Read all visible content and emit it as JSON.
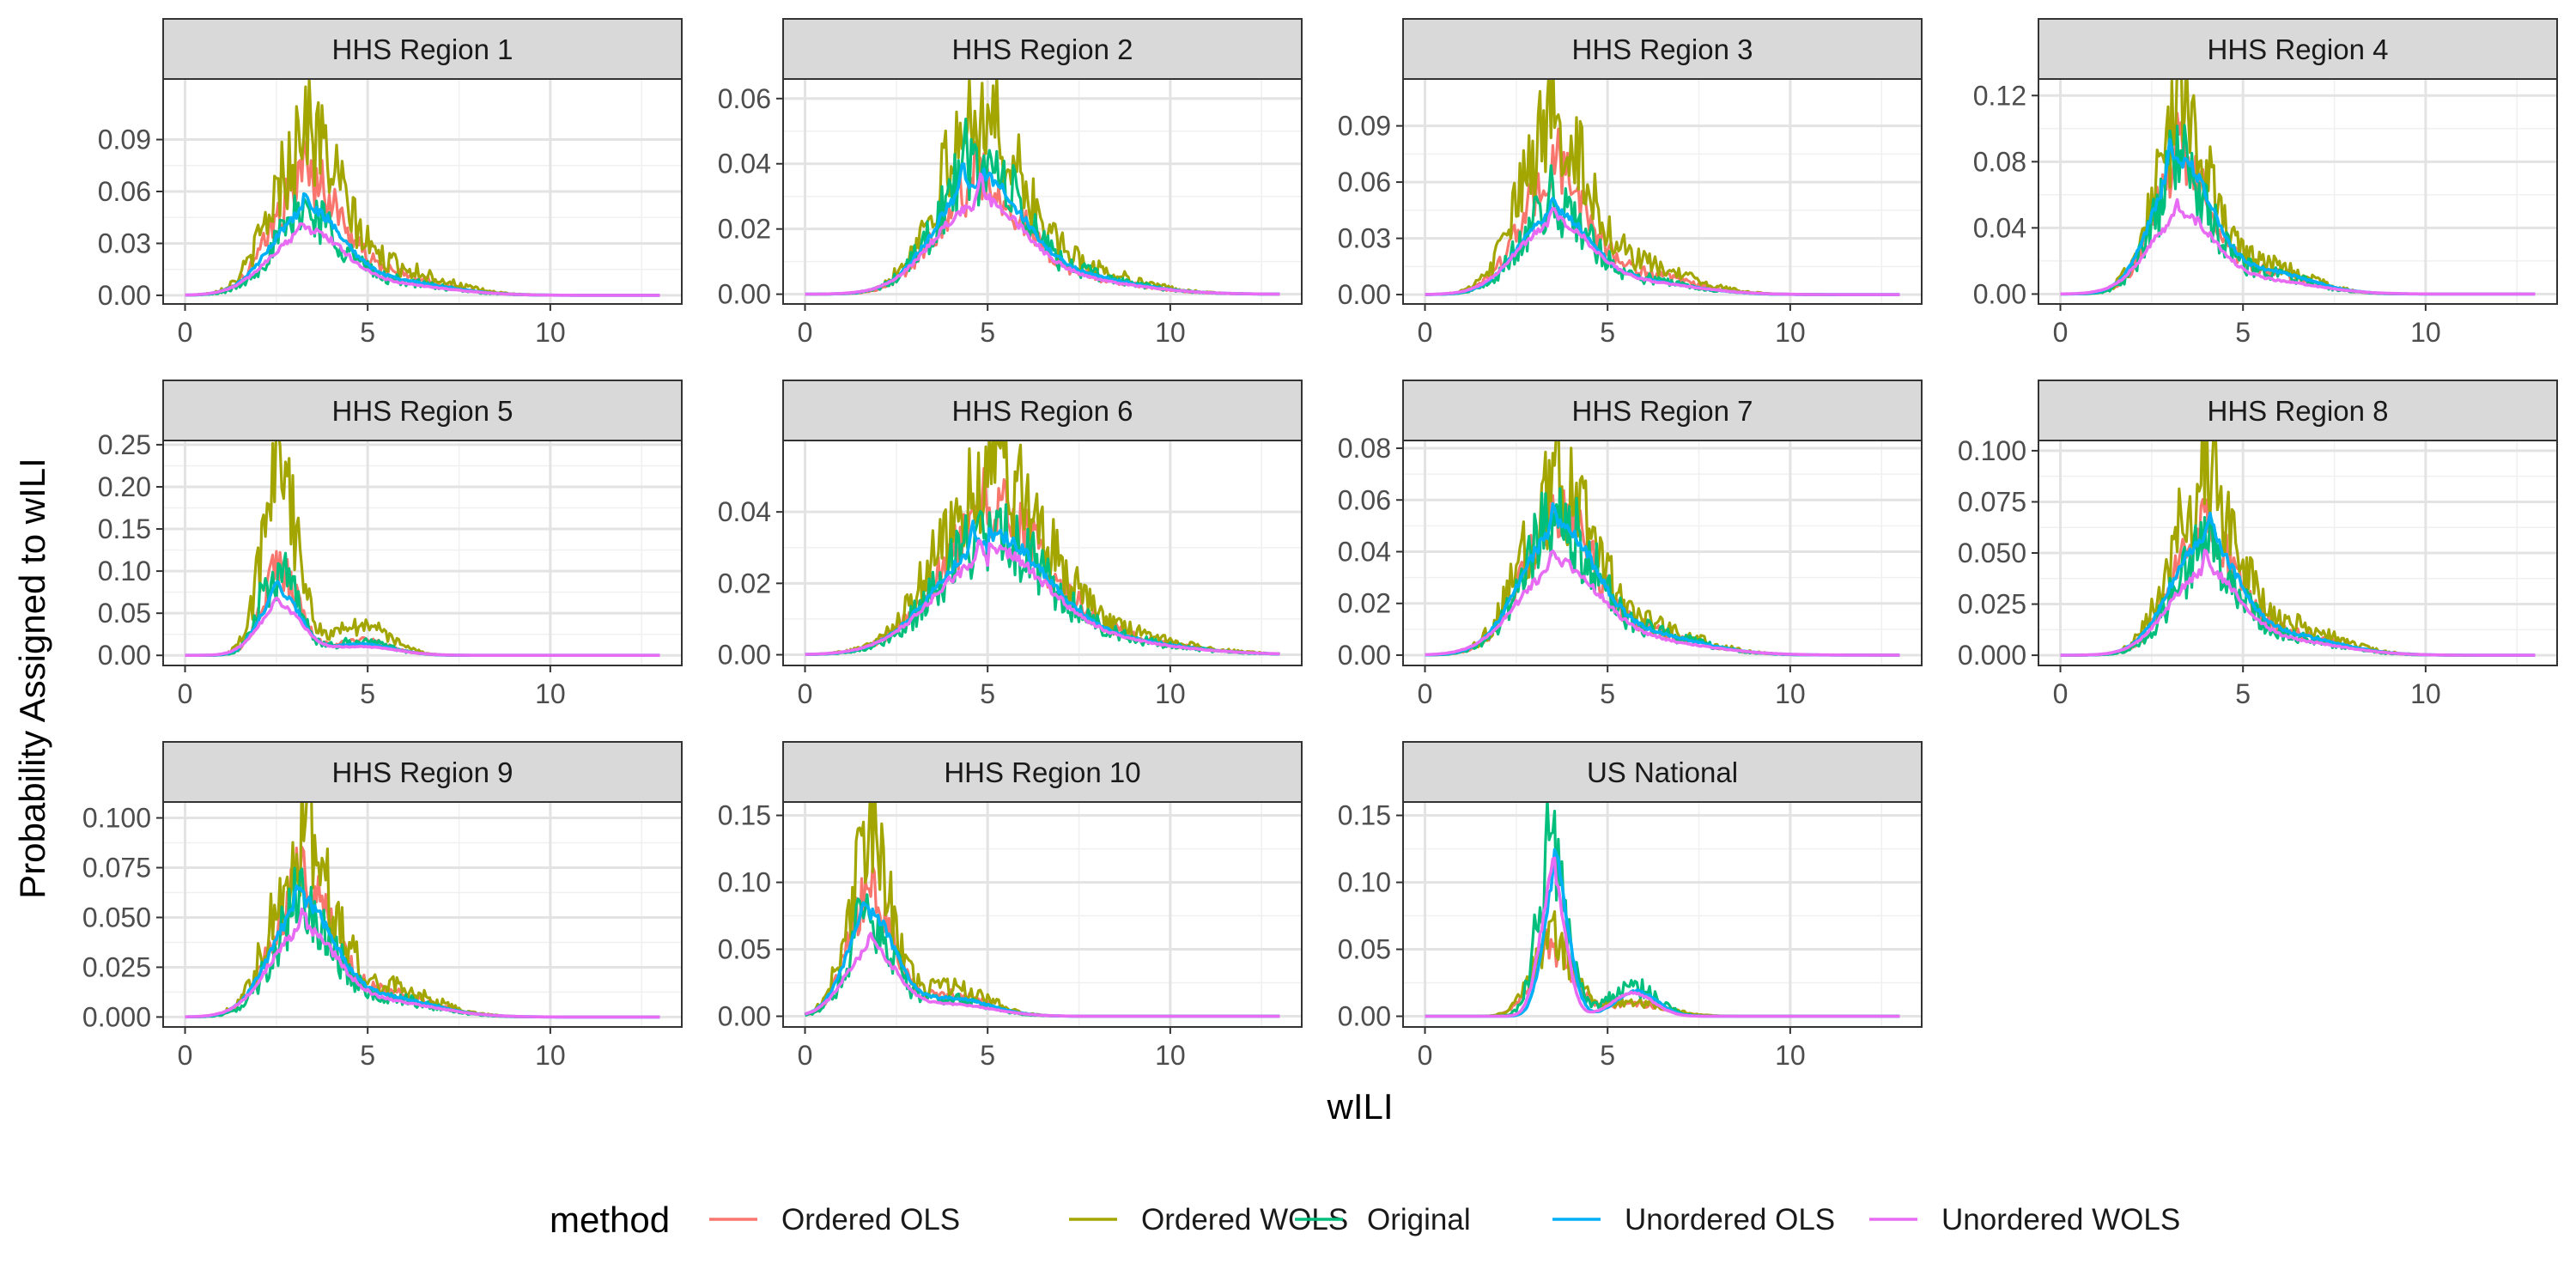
{
  "chart_data": {
    "type": "line",
    "facet_layout": "4 columns, 3 rows",
    "xlabel": "wILI",
    "ylabel": "Probability Assigned to wILI",
    "xlim": [
      0,
      13
    ],
    "x_ticks": [
      "0",
      "5",
      "10"
    ],
    "grid": true,
    "legend": {
      "title": "method",
      "position": "bottom",
      "entries": [
        {
          "name": "Ordered OLS",
          "color": "#F8766D"
        },
        {
          "name": "Ordered WOLS",
          "color": "#A3A500"
        },
        {
          "name": "Original",
          "color": "#00BF7D"
        },
        {
          "name": "Unordered OLS",
          "color": "#00B0F6"
        },
        {
          "name": "Unordered WOLS",
          "color": "#E76BF3"
        }
      ]
    },
    "panels": [
      {
        "title": "HHS Region 1",
        "ylim": [
          -0.005,
          0.125
        ],
        "y_ticks": [
          "0.00",
          "0.03",
          "0.06",
          "0.09"
        ],
        "y_tick_values": [
          0,
          0.03,
          0.06,
          0.09
        ],
        "series": [
          {
            "method": "Ordered OLS",
            "peak_x": 3.2,
            "peak_y": 0.08,
            "center": 3.3,
            "spread": 0.9
          },
          {
            "method": "Ordered WOLS",
            "peak_x": 3.25,
            "peak_y": 0.108,
            "center": 3.3,
            "spread": 0.9
          },
          {
            "method": "Original",
            "peak_x": 3.2,
            "peak_y": 0.055,
            "center": 3.3,
            "spread": 0.9
          },
          {
            "method": "Unordered OLS",
            "peak_x": 3.3,
            "peak_y": 0.058,
            "center": 3.3,
            "spread": 0.95
          },
          {
            "method": "Unordered WOLS",
            "peak_x": 3.2,
            "peak_y": 0.043,
            "center": 3.3,
            "spread": 1.0
          }
        ]
      },
      {
        "title": "HHS Region 2",
        "ylim": [
          -0.003,
          0.066
        ],
        "y_ticks": [
          "0.00",
          "0.02",
          "0.04",
          "0.06"
        ],
        "y_tick_values": [
          0,
          0.02,
          0.04,
          0.06
        ],
        "series": [
          {
            "method": "Ordered OLS",
            "peak_x": 4.7,
            "peak_y": 0.04,
            "center": 4.7,
            "spread": 1.1
          },
          {
            "method": "Ordered WOLS",
            "peak_x": 4.6,
            "peak_y": 0.061,
            "center": 4.7,
            "spread": 1.1
          },
          {
            "method": "Original",
            "peak_x": 4.4,
            "peak_y": 0.045,
            "center": 4.7,
            "spread": 1.1
          },
          {
            "method": "Unordered OLS",
            "peak_x": 4.3,
            "peak_y": 0.041,
            "center": 4.7,
            "spread": 1.15
          },
          {
            "method": "Unordered WOLS",
            "peak_x": 4.8,
            "peak_y": 0.033,
            "center": 4.7,
            "spread": 1.2
          }
        ]
      },
      {
        "title": "HHS Region 3",
        "ylim": [
          -0.005,
          0.115
        ],
        "y_ticks": [
          "0.00",
          "0.03",
          "0.06",
          "0.09"
        ],
        "y_tick_values": [
          0,
          0.03,
          0.06,
          0.09
        ],
        "series": [
          {
            "method": "Ordered OLS",
            "peak_x": 3.6,
            "peak_y": 0.075,
            "center": 3.5,
            "spread": 0.9
          },
          {
            "method": "Ordered WOLS",
            "peak_x": 3.5,
            "peak_y": 0.107,
            "center": 3.5,
            "spread": 0.9
          },
          {
            "method": "Original",
            "peak_x": 3.4,
            "peak_y": 0.055,
            "center": 3.5,
            "spread": 0.9
          },
          {
            "method": "Unordered OLS",
            "peak_x": 3.5,
            "peak_y": 0.05,
            "center": 3.5,
            "spread": 0.95
          },
          {
            "method": "Unordered WOLS",
            "peak_x": 3.5,
            "peak_y": 0.045,
            "center": 3.5,
            "spread": 1.0
          }
        ]
      },
      {
        "title": "HHS Region 4",
        "ylim": [
          -0.006,
          0.13
        ],
        "y_ticks": [
          "0.00",
          "0.04",
          "0.08",
          "0.12"
        ],
        "y_tick_values": [
          0,
          0.04,
          0.08,
          0.12
        ],
        "series": [
          {
            "method": "Ordered OLS",
            "peak_x": 3.2,
            "peak_y": 0.095,
            "center": 3.3,
            "spread": 0.75
          },
          {
            "method": "Ordered WOLS",
            "peak_x": 3.3,
            "peak_y": 0.125,
            "center": 3.3,
            "spread": 0.75
          },
          {
            "method": "Original",
            "peak_x": 3.1,
            "peak_y": 0.09,
            "center": 3.3,
            "spread": 0.75
          },
          {
            "method": "Unordered OLS",
            "peak_x": 3.0,
            "peak_y": 0.095,
            "center": 3.3,
            "spread": 0.8
          },
          {
            "method": "Unordered WOLS",
            "peak_x": 3.2,
            "peak_y": 0.055,
            "center": 3.3,
            "spread": 0.9
          }
        ]
      },
      {
        "title": "HHS Region 5",
        "ylim": [
          -0.012,
          0.255
        ],
        "y_ticks": [
          "0.00",
          "0.05",
          "0.10",
          "0.15",
          "0.20",
          "0.25"
        ],
        "y_tick_values": [
          0,
          0.05,
          0.1,
          0.15,
          0.2,
          0.25
        ],
        "series": [
          {
            "method": "Ordered OLS",
            "peak_x": 2.4,
            "peak_y": 0.12,
            "center": 2.6,
            "spread": 0.5
          },
          {
            "method": "Ordered WOLS",
            "peak_x": 2.4,
            "peak_y": 0.245,
            "center": 2.6,
            "spread": 0.5
          },
          {
            "method": "Original",
            "peak_x": 2.1,
            "peak_y": 0.115,
            "center": 2.6,
            "spread": 0.5
          },
          {
            "method": "Unordered OLS",
            "peak_x": 2.5,
            "peak_y": 0.09,
            "center": 2.6,
            "spread": 0.55
          },
          {
            "method": "Unordered WOLS",
            "peak_x": 2.5,
            "peak_y": 0.07,
            "center": 2.6,
            "spread": 0.6
          }
        ]
      },
      {
        "title": "HHS Region 6",
        "ylim": [
          -0.003,
          0.06
        ],
        "y_ticks": [
          "0.00",
          "0.02",
          "0.04"
        ],
        "y_tick_values": [
          0,
          0.02,
          0.04
        ],
        "series": [
          {
            "method": "Ordered OLS",
            "peak_x": 4.9,
            "peak_y": 0.045,
            "center": 5.0,
            "spread": 1.4
          },
          {
            "method": "Ordered WOLS",
            "peak_x": 5.0,
            "peak_y": 0.056,
            "center": 5.0,
            "spread": 1.4
          },
          {
            "method": "Original",
            "peak_x": 4.4,
            "peak_y": 0.038,
            "center": 5.0,
            "spread": 1.4
          },
          {
            "method": "Unordered OLS",
            "peak_x": 4.6,
            "peak_y": 0.037,
            "center": 5.0,
            "spread": 1.45
          },
          {
            "method": "Unordered WOLS",
            "peak_x": 4.8,
            "peak_y": 0.032,
            "center": 5.0,
            "spread": 1.5
          }
        ]
      },
      {
        "title": "HHS Region 7",
        "ylim": [
          -0.004,
          0.083
        ],
        "y_ticks": [
          "0.00",
          "0.02",
          "0.04",
          "0.06",
          "0.08"
        ],
        "y_tick_values": [
          0,
          0.02,
          0.04,
          0.06,
          0.08
        ],
        "series": [
          {
            "method": "Ordered OLS",
            "peak_x": 3.4,
            "peak_y": 0.062,
            "center": 3.6,
            "spread": 0.95
          },
          {
            "method": "Ordered WOLS",
            "peak_x": 3.6,
            "peak_y": 0.077,
            "center": 3.6,
            "spread": 0.95
          },
          {
            "method": "Original",
            "peak_x": 3.2,
            "peak_y": 0.06,
            "center": 3.6,
            "spread": 0.95
          },
          {
            "method": "Unordered OLS",
            "peak_x": 3.5,
            "peak_y": 0.058,
            "center": 3.6,
            "spread": 1.0
          },
          {
            "method": "Unordered WOLS",
            "peak_x": 3.5,
            "peak_y": 0.04,
            "center": 3.6,
            "spread": 1.1
          }
        ]
      },
      {
        "title": "HHS Region 8",
        "ylim": [
          -0.005,
          0.105
        ],
        "y_ticks": [
          "0.000",
          "0.025",
          "0.050",
          "0.075",
          "0.100"
        ],
        "y_tick_values": [
          0,
          0.025,
          0.05,
          0.075,
          0.1
        ],
        "series": [
          {
            "method": "Ordered OLS",
            "peak_x": 3.9,
            "peak_y": 0.072,
            "center": 3.9,
            "spread": 0.85
          },
          {
            "method": "Ordered WOLS",
            "peak_x": 3.9,
            "peak_y": 0.1,
            "center": 3.9,
            "spread": 0.85
          },
          {
            "method": "Original",
            "peak_x": 4.0,
            "peak_y": 0.06,
            "center": 3.9,
            "spread": 0.85
          },
          {
            "method": "Unordered OLS",
            "peak_x": 4.1,
            "peak_y": 0.067,
            "center": 3.9,
            "spread": 0.9
          },
          {
            "method": "Unordered WOLS",
            "peak_x": 4.0,
            "peak_y": 0.048,
            "center": 3.9,
            "spread": 0.95
          }
        ]
      },
      {
        "title": "HHS Region 9",
        "ylim": [
          -0.005,
          0.108
        ],
        "y_ticks": [
          "0.000",
          "0.025",
          "0.050",
          "0.075",
          "0.100"
        ],
        "y_tick_values": [
          0,
          0.025,
          0.05,
          0.075,
          0.1
        ],
        "series": [
          {
            "method": "Ordered OLS",
            "peak_x": 3.1,
            "peak_y": 0.08,
            "center": 3.2,
            "spread": 0.8
          },
          {
            "method": "Ordered WOLS",
            "peak_x": 3.3,
            "peak_y": 0.106,
            "center": 3.2,
            "spread": 0.8
          },
          {
            "method": "Original",
            "peak_x": 3.1,
            "peak_y": 0.065,
            "center": 3.2,
            "spread": 0.8
          },
          {
            "method": "Unordered OLS",
            "peak_x": 3.1,
            "peak_y": 0.067,
            "center": 3.2,
            "spread": 0.85
          },
          {
            "method": "Unordered WOLS",
            "peak_x": 3.2,
            "peak_y": 0.052,
            "center": 3.2,
            "spread": 0.9
          }
        ]
      },
      {
        "title": "HHS Region 10",
        "ylim": [
          -0.008,
          0.16
        ],
        "y_ticks": [
          "0.00",
          "0.05",
          "0.10",
          "0.15"
        ],
        "y_tick_values": [
          0,
          0.05,
          0.1,
          0.15
        ],
        "series": [
          {
            "method": "Ordered OLS",
            "peak_x": 1.8,
            "peak_y": 0.11,
            "center": 1.8,
            "spread": 0.6
          },
          {
            "method": "Ordered WOLS",
            "peak_x": 1.8,
            "peak_y": 0.155,
            "center": 1.8,
            "spread": 0.6
          },
          {
            "method": "Original",
            "peak_x": 1.5,
            "peak_y": 0.09,
            "center": 1.8,
            "spread": 0.6
          },
          {
            "method": "Unordered OLS",
            "peak_x": 1.6,
            "peak_y": 0.092,
            "center": 1.8,
            "spread": 0.65
          },
          {
            "method": "Unordered WOLS",
            "peak_x": 1.8,
            "peak_y": 0.06,
            "center": 1.8,
            "spread": 0.7
          }
        ]
      },
      {
        "title": "US National",
        "ylim": [
          -0.008,
          0.16
        ],
        "y_ticks": [
          "0.00",
          "0.05",
          "0.10",
          "0.15"
        ],
        "y_tick_values": [
          0,
          0.05,
          0.1,
          0.15
        ],
        "series": [
          {
            "method": "Ordered OLS",
            "peak_x": 3.3,
            "peak_y": 0.06,
            "center": 3.5,
            "spread": 0.55
          },
          {
            "method": "Ordered WOLS",
            "peak_x": 3.5,
            "peak_y": 0.07,
            "center": 3.5,
            "spread": 0.55
          },
          {
            "method": "Original",
            "peak_x": 3.4,
            "peak_y": 0.15,
            "center": 3.5,
            "spread": 0.4
          },
          {
            "method": "Unordered OLS",
            "peak_x": 3.6,
            "peak_y": 0.125,
            "center": 3.6,
            "spread": 0.35
          },
          {
            "method": "Unordered WOLS",
            "peak_x": 3.5,
            "peak_y": 0.118,
            "center": 3.5,
            "spread": 0.35
          }
        ]
      }
    ]
  }
}
